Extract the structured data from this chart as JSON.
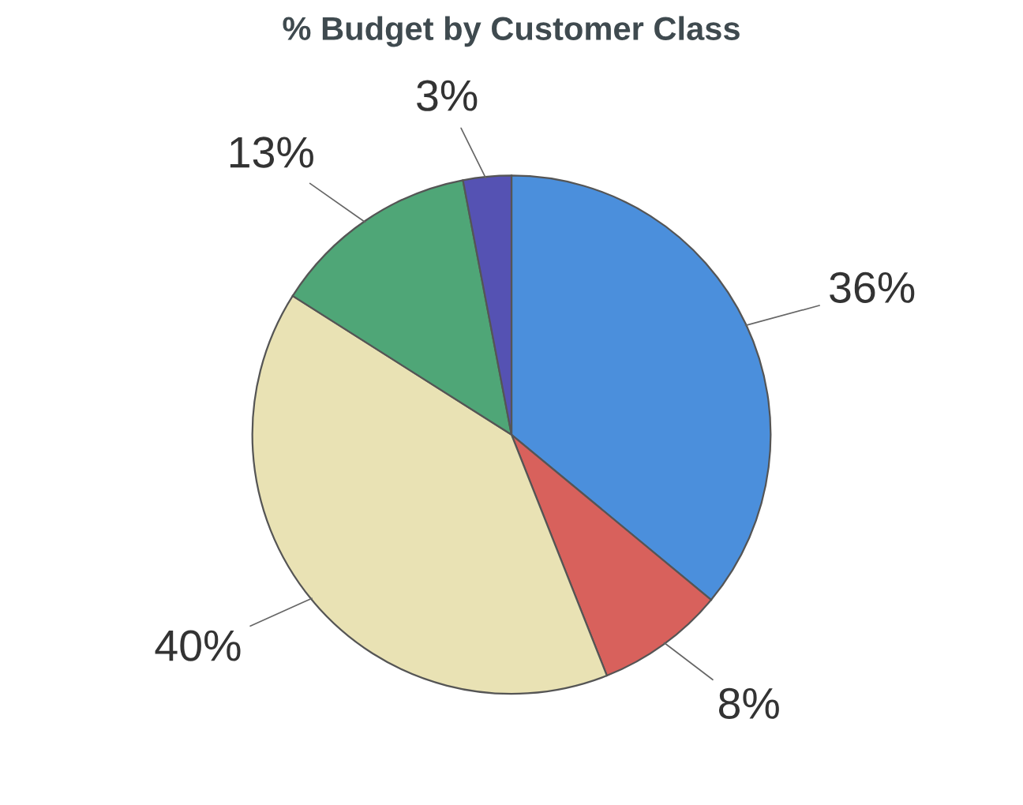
{
  "chart_data": {
    "type": "pie",
    "title": "% Budget by Customer Class",
    "categories": [
      null,
      null,
      null,
      null,
      null
    ],
    "values": [
      36,
      8,
      40,
      13,
      3
    ],
    "colors": [
      "#4b8fdc",
      "#d8615c",
      "#e9e2b4",
      "#4fa677",
      "#5552b3"
    ],
    "value_labels": [
      "36%",
      "8%",
      "40%",
      "13%",
      "3%"
    ]
  }
}
